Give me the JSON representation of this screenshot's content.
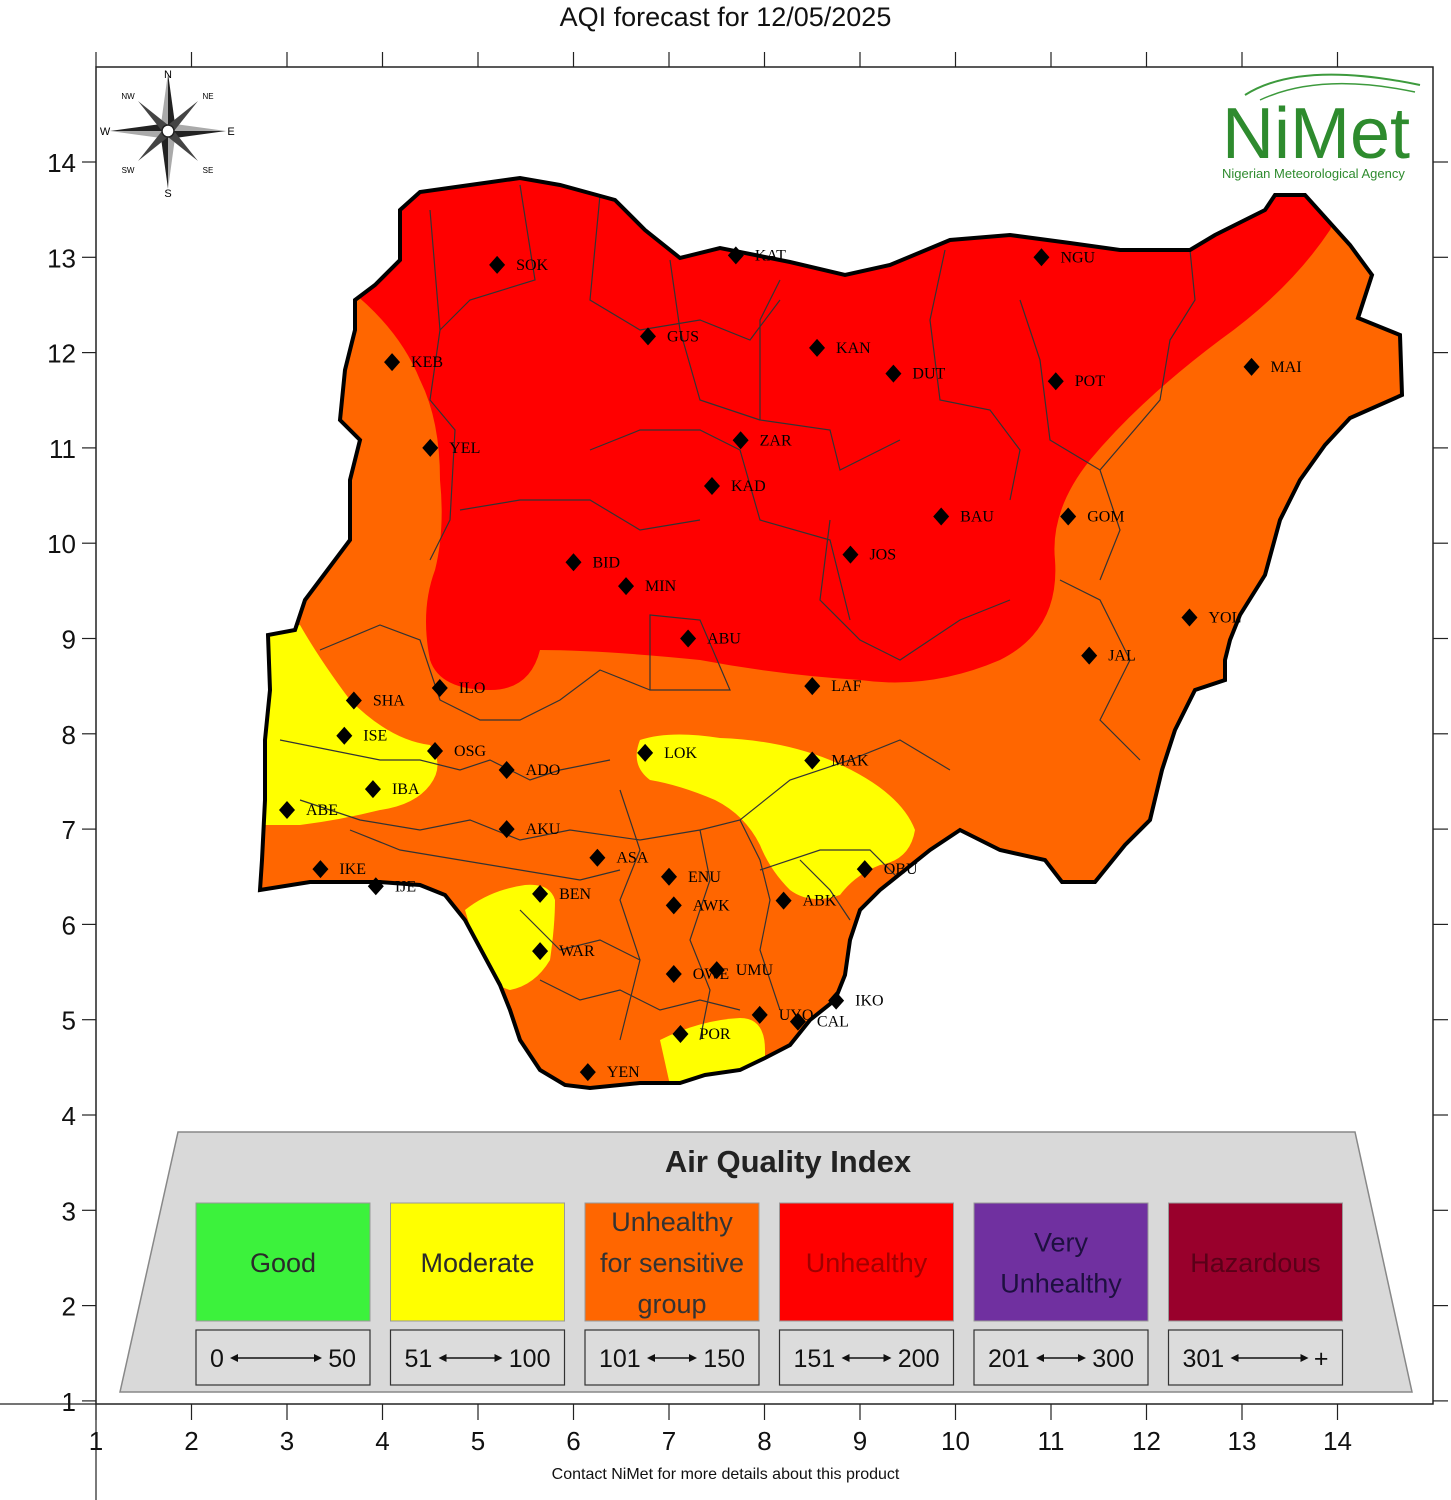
{
  "title": "AQI forecast for 12/05/2025",
  "footer": "Contact NiMet for more details about this product",
  "logo": {
    "name": "NiMet",
    "subtitle": "Nigerian Meteorological Agency"
  },
  "compass": {
    "n": "N",
    "ne": "NE",
    "e": "E",
    "se": "SE",
    "s": "S",
    "sw": "SW",
    "w": "W",
    "nw": "NW"
  },
  "axes": {
    "x_ticks": [
      "1",
      "2",
      "3",
      "4",
      "5",
      "6",
      "7",
      "8",
      "9",
      "10",
      "11",
      "12",
      "13",
      "14"
    ],
    "y_ticks": [
      "1",
      "2",
      "3",
      "4",
      "5",
      "6",
      "7",
      "8",
      "9",
      "10",
      "11",
      "12",
      "13",
      "14"
    ]
  },
  "cities": [
    {
      "code": "SOK",
      "lon": 5.2,
      "lat": 12.92
    },
    {
      "code": "KAT",
      "lon": 7.7,
      "lat": 13.02
    },
    {
      "code": "NGU",
      "lon": 10.9,
      "lat": 13.0
    },
    {
      "code": "GUS",
      "lon": 6.78,
      "lat": 12.17
    },
    {
      "code": "KEB",
      "lon": 4.1,
      "lat": 11.9
    },
    {
      "code": "KAN",
      "lon": 8.55,
      "lat": 12.05
    },
    {
      "code": "DUT",
      "lon": 9.35,
      "lat": 11.78
    },
    {
      "code": "POT",
      "lon": 11.05,
      "lat": 11.7
    },
    {
      "code": "MAI",
      "lon": 13.1,
      "lat": 11.85
    },
    {
      "code": "YEL",
      "lon": 4.5,
      "lat": 11.0
    },
    {
      "code": "ZAR",
      "lon": 7.75,
      "lat": 11.08
    },
    {
      "code": "KAD",
      "lon": 7.45,
      "lat": 10.6
    },
    {
      "code": "BAU",
      "lon": 9.85,
      "lat": 10.28
    },
    {
      "code": "GOM",
      "lon": 11.18,
      "lat": 10.28
    },
    {
      "code": "JOS",
      "lon": 8.9,
      "lat": 9.88
    },
    {
      "code": "BID",
      "lon": 6.0,
      "lat": 9.8
    },
    {
      "code": "MIN",
      "lon": 6.55,
      "lat": 9.55
    },
    {
      "code": "YOL",
      "lon": 12.45,
      "lat": 9.22
    },
    {
      "code": "ABU",
      "lon": 7.2,
      "lat": 9.0
    },
    {
      "code": "JAL",
      "lon": 11.4,
      "lat": 8.82
    },
    {
      "code": "LAF",
      "lon": 8.5,
      "lat": 8.5
    },
    {
      "code": "SHA",
      "lon": 3.7,
      "lat": 8.35
    },
    {
      "code": "ILO",
      "lon": 4.6,
      "lat": 8.48
    },
    {
      "code": "ISE",
      "lon": 3.6,
      "lat": 7.98
    },
    {
      "code": "OSG",
      "lon": 4.55,
      "lat": 7.82
    },
    {
      "code": "LOK",
      "lon": 6.75,
      "lat": 7.8
    },
    {
      "code": "MAK",
      "lon": 8.5,
      "lat": 7.72
    },
    {
      "code": "ADO",
      "lon": 5.3,
      "lat": 7.62
    },
    {
      "code": "IBA",
      "lon": 3.9,
      "lat": 7.42
    },
    {
      "code": "ABE",
      "lon": 3.0,
      "lat": 7.2
    },
    {
      "code": "AKU",
      "lon": 5.3,
      "lat": 7.0
    },
    {
      "code": "ASA",
      "lon": 6.25,
      "lat": 6.7
    },
    {
      "code": "OBU",
      "lon": 9.05,
      "lat": 6.58
    },
    {
      "code": "IKE",
      "lon": 3.35,
      "lat": 6.58
    },
    {
      "code": "IJE",
      "lon": 3.93,
      "lat": 6.4
    },
    {
      "code": "ENU",
      "lon": 7.0,
      "lat": 6.5
    },
    {
      "code": "BEN",
      "lon": 5.65,
      "lat": 6.32
    },
    {
      "code": "ABK",
      "lon": 8.2,
      "lat": 6.25
    },
    {
      "code": "AWK",
      "lon": 7.05,
      "lat": 6.2
    },
    {
      "code": "WAR",
      "lon": 5.65,
      "lat": 5.72
    },
    {
      "code": "OWE",
      "lon": 7.05,
      "lat": 5.48
    },
    {
      "code": "UMU",
      "lon": 7.5,
      "lat": 5.52
    },
    {
      "code": "IKO",
      "lon": 8.75,
      "lat": 5.2
    },
    {
      "code": "UYO",
      "lon": 7.95,
      "lat": 5.05
    },
    {
      "code": "CAL",
      "lon": 8.35,
      "lat": 4.98
    },
    {
      "code": "POR",
      "lon": 7.12,
      "lat": 4.85
    },
    {
      "code": "YEN",
      "lon": 6.15,
      "lat": 4.45
    }
  ],
  "legend": {
    "title": "Air Quality Index",
    "categories": [
      {
        "label_lines": [
          "Good"
        ],
        "range_low": "0",
        "range_high": "50",
        "color": "#3cf23c",
        "text_color": "#2a2a2a"
      },
      {
        "label_lines": [
          "Moderate"
        ],
        "range_low": "51",
        "range_high": "100",
        "color": "#ffff00",
        "text_color": "#2a2a2a"
      },
      {
        "label_lines": [
          "Unhealthy",
          "for sensitive",
          "group"
        ],
        "range_low": "101",
        "range_high": "150",
        "color": "#ff6600",
        "text_color": "#333333"
      },
      {
        "label_lines": [
          "Unhealthy"
        ],
        "range_low": "151",
        "range_high": "200",
        "color": "#ff0000",
        "text_color": "#a00000"
      },
      {
        "label_lines": [
          "Very",
          "Unhealthy"
        ],
        "range_low": "201",
        "range_high": "300",
        "color": "#7030a0",
        "text_color": "#1e1040"
      },
      {
        "label_lines": [
          "Hazardous"
        ],
        "range_low": "301",
        "range_high": "+",
        "color": "#99002c",
        "text_color": "#5a0018"
      }
    ]
  },
  "colors": {
    "good": "#3cf23c",
    "moderate": "#ffff00",
    "sensitive": "#ff6600",
    "unhealthy": "#ff0000",
    "very_unhealthy": "#7030a0",
    "hazardous": "#99002c"
  }
}
